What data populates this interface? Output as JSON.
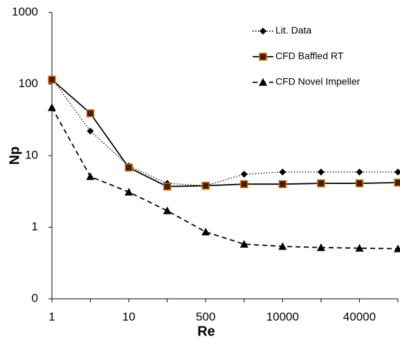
{
  "chart_data": {
    "type": "line",
    "x_label": "Re",
    "y_label": "Np",
    "categories": [
      "1",
      null,
      "10",
      null,
      "500",
      null,
      "10000",
      null,
      "40000",
      null
    ],
    "ylim": [
      0.1,
      1000
    ],
    "yscale": "log",
    "yticks": [
      {
        "value": 0.1,
        "label": "0"
      },
      1,
      10,
      100,
      1000
    ],
    "legend": "top-right",
    "series": [
      {
        "name": "Lit. Data",
        "color": "#000000",
        "line_style": "dotted",
        "marker": "diamond",
        "values": [
          120,
          22,
          7.2,
          4.1,
          3.8,
          5.5,
          5.9,
          5.9,
          5.9,
          5.9
        ]
      },
      {
        "name": "CFD Baffled RT",
        "color": "#000000",
        "line_style": "solid",
        "marker": "square",
        "marker_edge": "#e46c0a",
        "values": [
          115,
          39,
          6.8,
          3.7,
          3.8,
          4.0,
          4.0,
          4.1,
          4.1,
          4.2
        ]
      },
      {
        "name": "CFD Novel Impeller",
        "color": "#000000",
        "line_style": "dashed",
        "marker": "triangle",
        "values": [
          47,
          5.1,
          3.1,
          1.7,
          0.86,
          0.58,
          0.54,
          0.52,
          0.51,
          0.5
        ]
      }
    ]
  }
}
